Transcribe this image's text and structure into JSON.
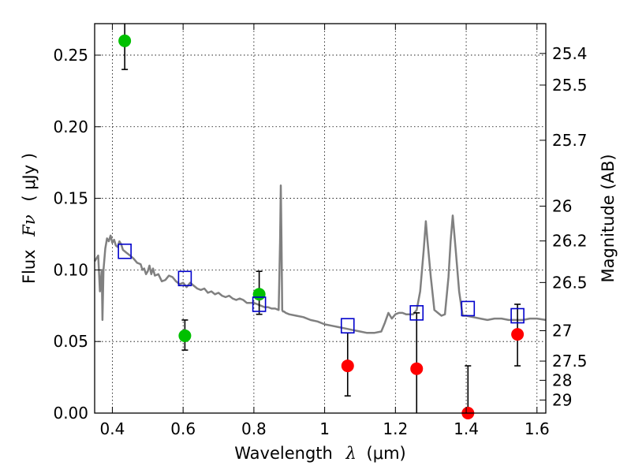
{
  "chart_data": {
    "type": "scatter",
    "xlabel": "Wavelength",
    "xlabel_math": "λ",
    "xlabel_unit": "(μm)",
    "ylabel": "Flux",
    "ylabel_math": "Fν",
    "ylabel_unit": "( μJy )",
    "y2label": "Magnitude (AB)",
    "xlim": [
      0.35,
      1.625
    ],
    "ylim": [
      0.0,
      0.272
    ],
    "grid": true,
    "x_ticks": [
      0.4,
      0.6,
      0.8,
      1.0,
      1.2,
      1.4,
      1.6
    ],
    "x_tick_labels": [
      "0.4",
      "0.6",
      "0.8",
      "1",
      "1.2",
      "1.4",
      "1.6"
    ],
    "y_ticks": [
      0.0,
      0.05,
      0.1,
      0.15,
      0.2,
      0.25
    ],
    "y_tick_labels": [
      "0.00",
      "0.05",
      "0.10",
      "0.15",
      "0.20",
      "0.25"
    ],
    "y2_tick_labels": [
      "25.4",
      "25.5",
      "25.7",
      "26",
      "26.2",
      "26.5",
      "27",
      "27.5",
      "28",
      "29"
    ],
    "colors": {
      "model": "#808080",
      "detected": "#00c000",
      "upper_limit": "#ff0000",
      "model_photometry": "#0000cc",
      "errorbar": "#000000"
    },
    "series": [
      {
        "kind": "line",
        "color_key": "model",
        "x": [
          0.35,
          0.36,
          0.365,
          0.37,
          0.372,
          0.375,
          0.38,
          0.385,
          0.39,
          0.395,
          0.4,
          0.405,
          0.41,
          0.415,
          0.42,
          0.425,
          0.43,
          0.44,
          0.45,
          0.46,
          0.47,
          0.48,
          0.485,
          0.49,
          0.495,
          0.5,
          0.505,
          0.51,
          0.515,
          0.52,
          0.53,
          0.54,
          0.55,
          0.56,
          0.57,
          0.58,
          0.59,
          0.6,
          0.61,
          0.62,
          0.63,
          0.64,
          0.65,
          0.66,
          0.67,
          0.68,
          0.69,
          0.7,
          0.71,
          0.72,
          0.73,
          0.74,
          0.75,
          0.76,
          0.77,
          0.78,
          0.79,
          0.8,
          0.81,
          0.82,
          0.83,
          0.84,
          0.85,
          0.86,
          0.87,
          0.874,
          0.876,
          0.878,
          0.88,
          0.882,
          0.885,
          0.89,
          0.9,
          0.92,
          0.94,
          0.96,
          0.98,
          1.0,
          1.02,
          1.04,
          1.06,
          1.08,
          1.1,
          1.12,
          1.14,
          1.16,
          1.17,
          1.18,
          1.19,
          1.2,
          1.21,
          1.22,
          1.23,
          1.24,
          1.25,
          1.26,
          1.27,
          1.28,
          1.286,
          1.29,
          1.3,
          1.31,
          1.32,
          1.33,
          1.34,
          1.35,
          1.356,
          1.362,
          1.37,
          1.38,
          1.39,
          1.4,
          1.42,
          1.44,
          1.46,
          1.48,
          1.5,
          1.52,
          1.54,
          1.56,
          1.58,
          1.6,
          1.625
        ],
        "y": [
          0.106,
          0.11,
          0.085,
          0.1,
          0.065,
          0.1,
          0.115,
          0.122,
          0.12,
          0.124,
          0.119,
          0.121,
          0.117,
          0.116,
          0.12,
          0.118,
          0.114,
          0.112,
          0.11,
          0.108,
          0.105,
          0.104,
          0.1,
          0.101,
          0.097,
          0.099,
          0.103,
          0.097,
          0.101,
          0.096,
          0.097,
          0.092,
          0.093,
          0.096,
          0.095,
          0.092,
          0.09,
          0.091,
          0.088,
          0.091,
          0.089,
          0.087,
          0.086,
          0.087,
          0.084,
          0.085,
          0.083,
          0.084,
          0.082,
          0.081,
          0.082,
          0.08,
          0.079,
          0.08,
          0.079,
          0.077,
          0.077,
          0.077,
          0.076,
          0.075,
          0.074,
          0.074,
          0.073,
          0.073,
          0.072,
          0.12,
          0.159,
          0.12,
          0.072,
          0.071,
          0.071,
          0.07,
          0.069,
          0.068,
          0.067,
          0.065,
          0.064,
          0.062,
          0.061,
          0.06,
          0.059,
          0.058,
          0.057,
          0.056,
          0.056,
          0.057,
          0.063,
          0.07,
          0.066,
          0.069,
          0.07,
          0.07,
          0.069,
          0.069,
          0.069,
          0.072,
          0.085,
          0.114,
          0.134,
          0.122,
          0.095,
          0.072,
          0.07,
          0.068,
          0.069,
          0.095,
          0.12,
          0.138,
          0.115,
          0.085,
          0.068,
          0.068,
          0.067,
          0.066,
          0.065,
          0.066,
          0.066,
          0.065,
          0.065,
          0.065,
          0.066,
          0.066,
          0.065
        ]
      },
      {
        "kind": "points",
        "color_key": "detected",
        "x": [
          0.435,
          0.605,
          0.815
        ],
        "y": [
          0.26,
          0.054,
          0.083
        ],
        "y_err_low": [
          0.24,
          0.044,
          0.069
        ],
        "y_err_high": [
          0.272,
          0.065,
          0.099
        ]
      },
      {
        "kind": "points",
        "color_key": "upper_limit",
        "x": [
          1.065,
          1.26,
          1.405,
          1.545
        ],
        "y": [
          0.033,
          0.031,
          0.0,
          0.055
        ],
        "y_err_low": [
          0.012,
          0.0,
          0.0,
          0.033
        ],
        "y_err_high": [
          0.056,
          0.07,
          0.033,
          0.076
        ]
      },
      {
        "kind": "squares",
        "color_key": "model_photometry",
        "x": [
          0.435,
          0.605,
          0.815,
          1.065,
          1.26,
          1.405,
          1.545
        ],
        "y": [
          0.113,
          0.094,
          0.076,
          0.061,
          0.07,
          0.073,
          0.068
        ]
      }
    ]
  }
}
